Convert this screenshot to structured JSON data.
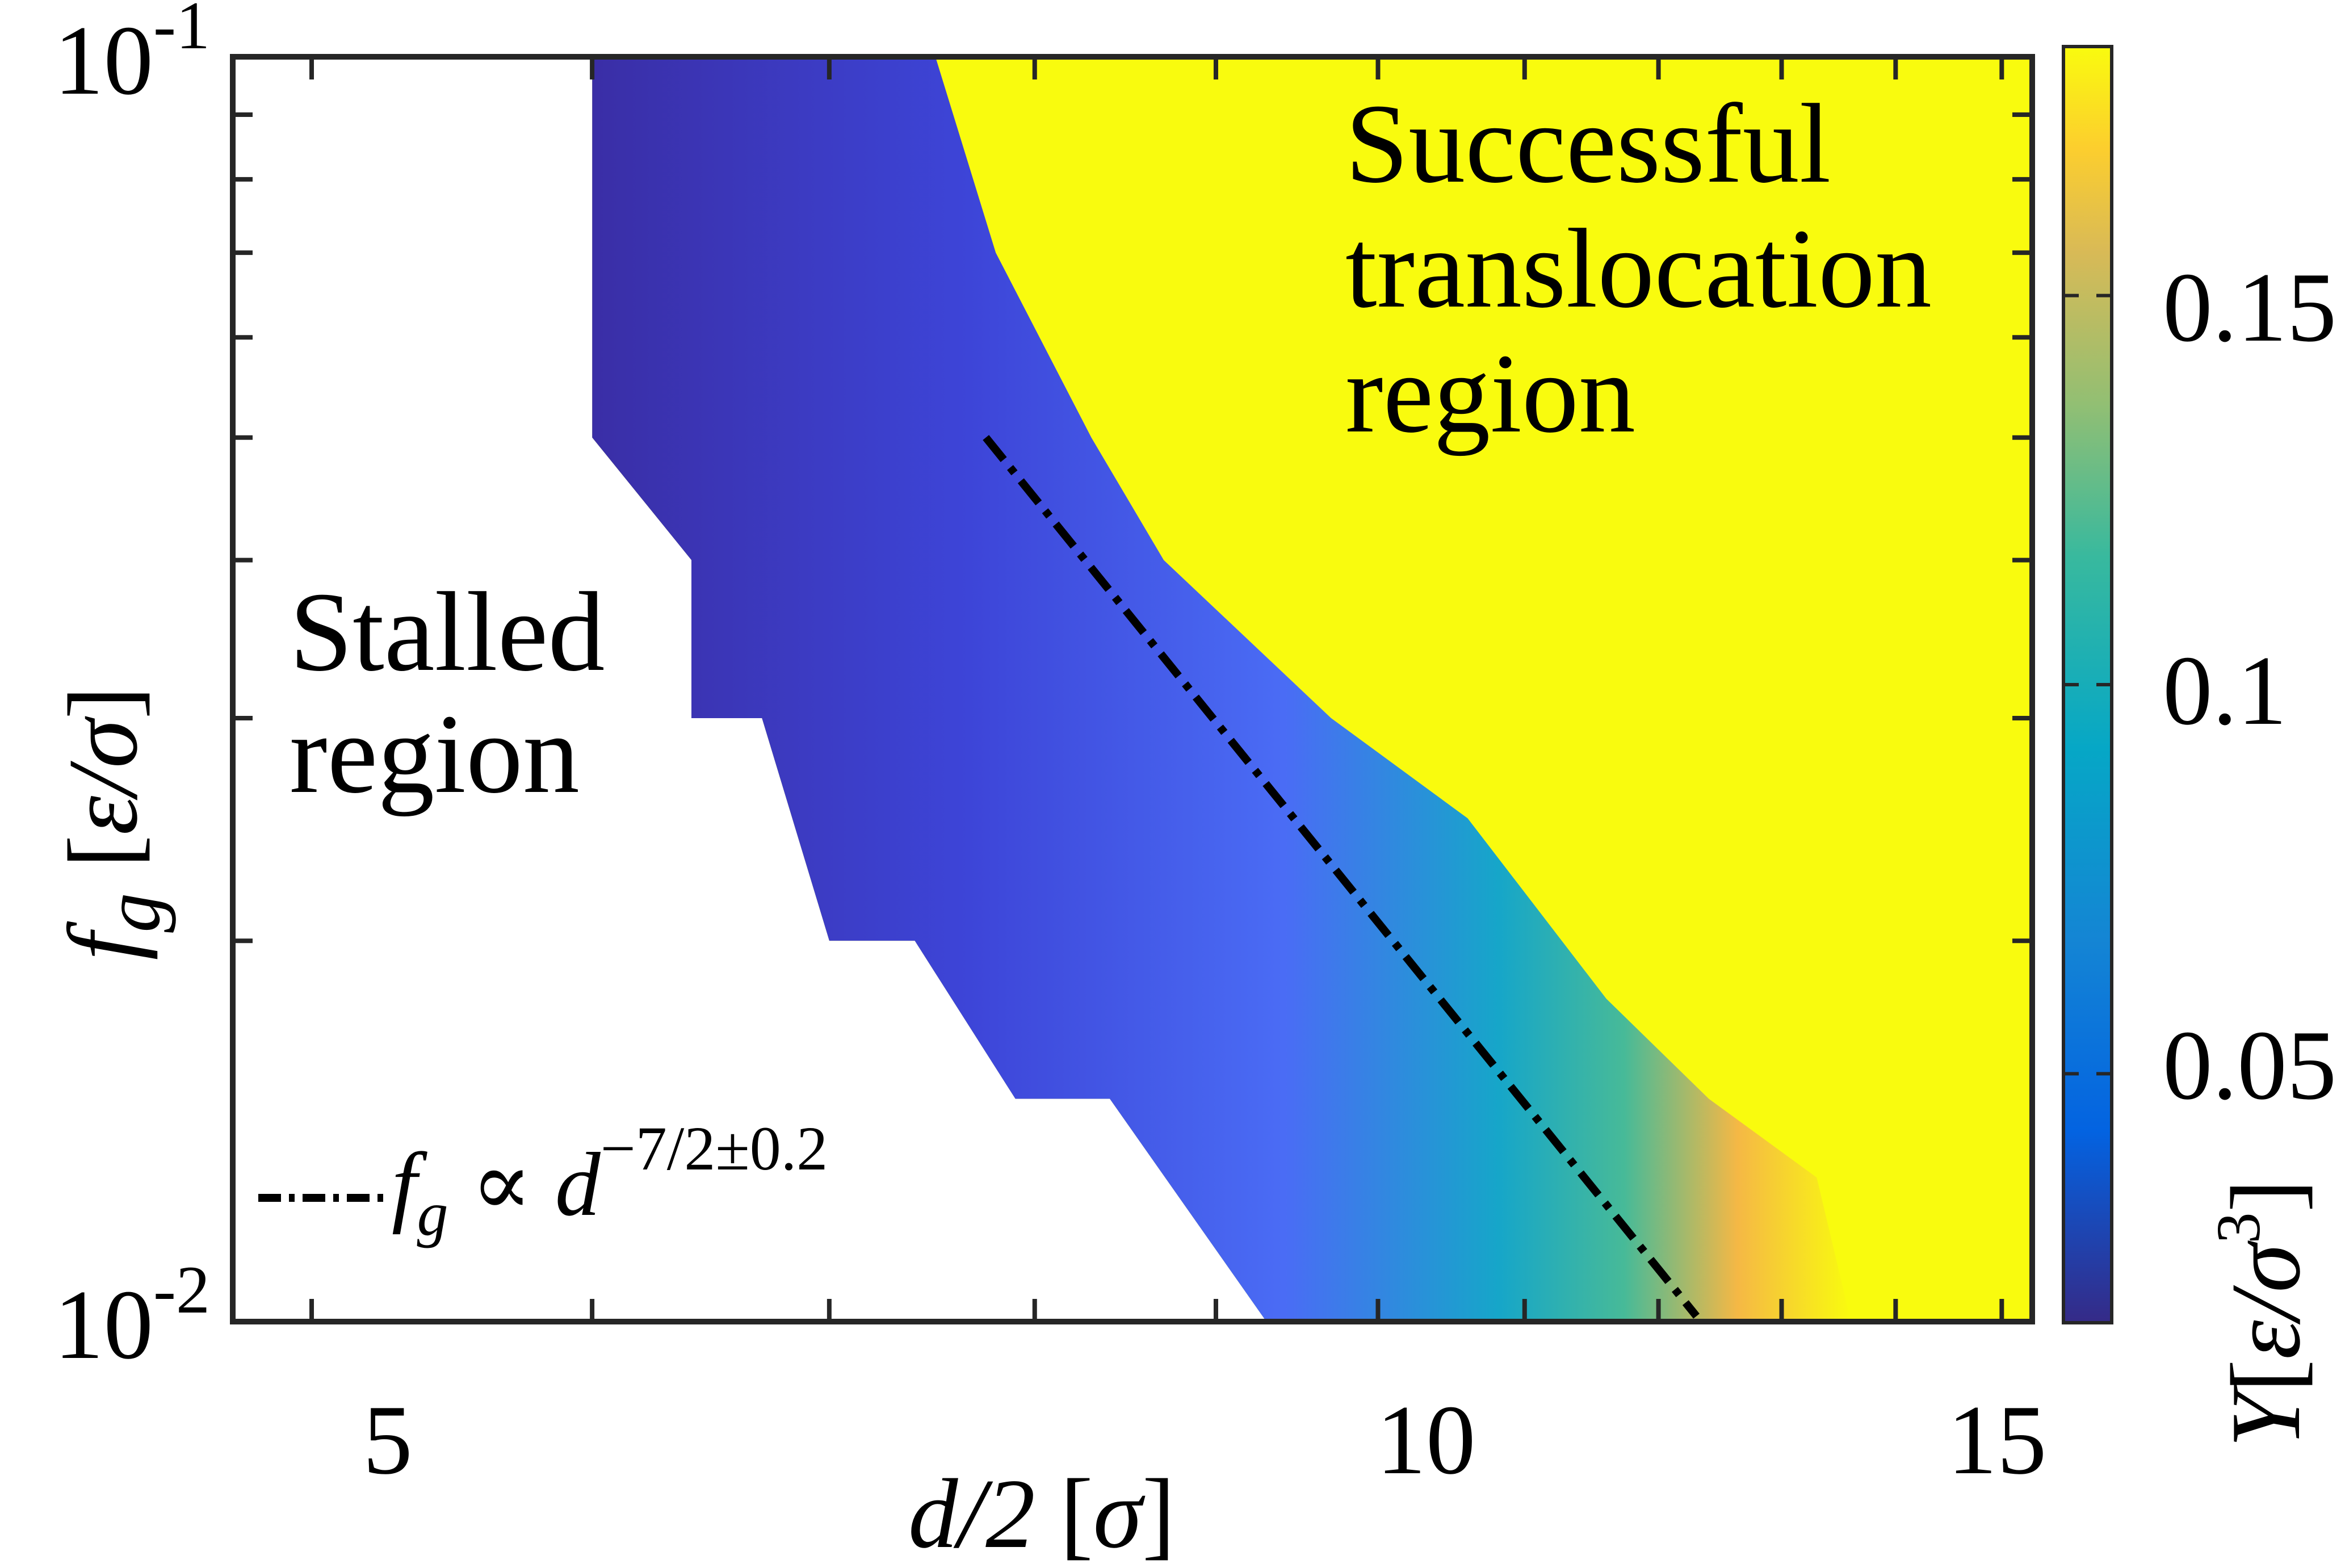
{
  "chart_data": {
    "type": "heatmap",
    "title": "",
    "xlabel": "d/2 [σ]",
    "ylabel": "f_g [ε/σ]",
    "x_scale": "log",
    "y_scale": "log",
    "xlim": [
      4.75,
      15.3
    ],
    "ylim": [
      0.01,
      0.1
    ],
    "x_ticks": [
      5,
      10,
      15
    ],
    "x_tick_labels": [
      "5",
      "10",
      "15"
    ],
    "y_ticks": [
      0.01,
      0.1
    ],
    "y_tick_labels": [
      "10^-2",
      "10^-1"
    ],
    "colorbar": {
      "label": "Y [ε/σ³]",
      "range": [
        0.018,
        0.182
      ],
      "ticks": [
        0.05,
        0.1,
        0.15
      ],
      "tick_labels": [
        "0.05",
        "0.1",
        "0.15"
      ],
      "colormap": "parula"
    },
    "regions": {
      "stalled": [
        "Stalled",
        "region"
      ],
      "successful": [
        "Successful",
        "translocation",
        "region"
      ]
    },
    "stall_boundary": [
      {
        "x": 6.0,
        "y": 0.1
      },
      {
        "x": 6.0,
        "y": 0.05
      },
      {
        "x": 6.4,
        "y": 0.04
      },
      {
        "x": 6.4,
        "y": 0.03
      },
      {
        "x": 6.7,
        "y": 0.03
      },
      {
        "x": 7.0,
        "y": 0.02
      },
      {
        "x": 7.4,
        "y": 0.02
      },
      {
        "x": 7.9,
        "y": 0.015
      },
      {
        "x": 8.4,
        "y": 0.015
      },
      {
        "x": 9.3,
        "y": 0.01
      }
    ],
    "transition_front": [
      {
        "x": 7.5,
        "y": 0.1
      },
      {
        "x": 7.8,
        "y": 0.07
      },
      {
        "x": 8.3,
        "y": 0.05
      },
      {
        "x": 8.7,
        "y": 0.04
      },
      {
        "x": 9.7,
        "y": 0.03
      },
      {
        "x": 10.6,
        "y": 0.025
      },
      {
        "x": 11.6,
        "y": 0.018
      },
      {
        "x": 12.4,
        "y": 0.015
      },
      {
        "x": 13.3,
        "y": 0.013
      },
      {
        "x": 13.6,
        "y": 0.01
      }
    ],
    "fit_line": {
      "label": "f_g ∝ d^(−7/2±0.2)",
      "legend_formula": "∝",
      "legend_exponent": "−7/2±0.2",
      "points": [
        {
          "x": 7.75,
          "y": 0.05
        },
        {
          "x": 12.3,
          "y": 0.0101
        }
      ]
    },
    "grid": false
  }
}
